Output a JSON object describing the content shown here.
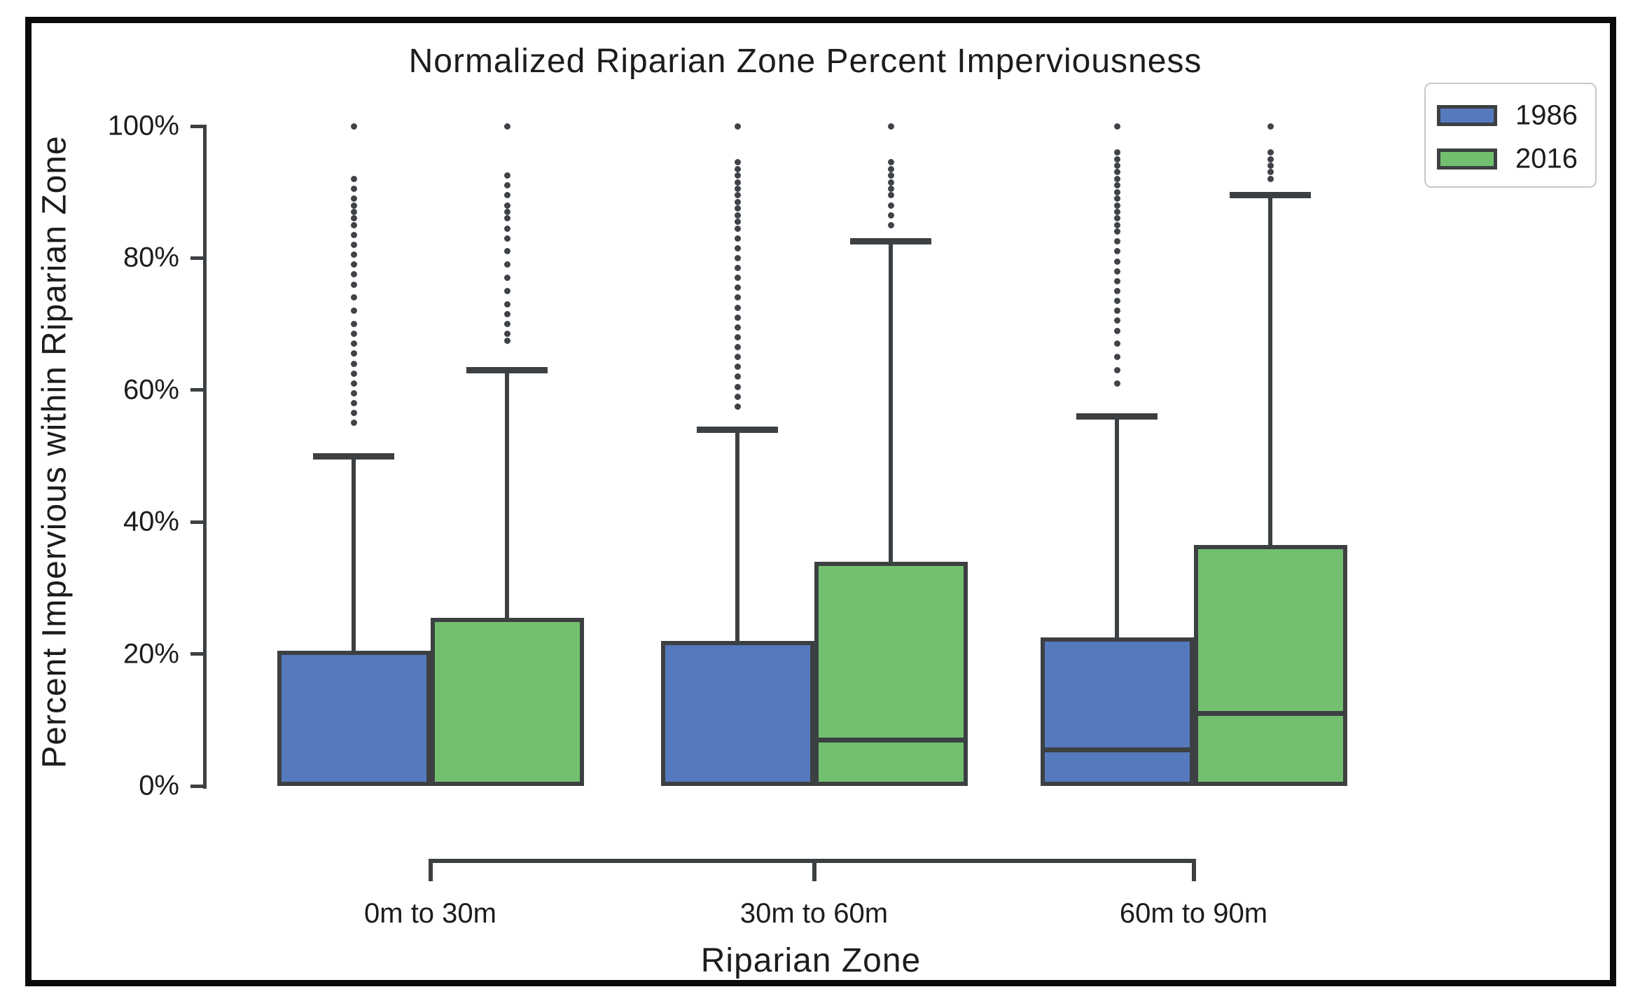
{
  "figure": {
    "title": "Normalized Riparian Zone Percent Imperviousness",
    "x_axis_label": "Riparian Zone",
    "y_axis_label": "Percent Impervious within Riparian Zone"
  },
  "legend": {
    "items": [
      {
        "label": "1986",
        "color": "#5579bd"
      },
      {
        "label": "2016",
        "color": "#72c06f"
      }
    ]
  },
  "colors": {
    "box_1986": "#5579bd",
    "box_2016": "#72c06f",
    "line": "#3c4043",
    "frame": "#0b0b0b",
    "legend_border": "#c8c8c8"
  },
  "chart_data": {
    "type": "boxplot",
    "title": "Normalized Riparian Zone Percent Imperviousness",
    "xlabel": "Riparian Zone",
    "ylabel": "Percent Impervious within Riparian Zone",
    "ylim": [
      0,
      100
    ],
    "y_tick_values": [
      0,
      20,
      40,
      60,
      80,
      100
    ],
    "y_tick_labels": [
      "0%",
      "20%",
      "40%",
      "60%",
      "80%",
      "100%"
    ],
    "grid": false,
    "legend_position": "upper right",
    "categories": [
      "0m to 30m",
      "30m to 60m",
      "60m to 90m"
    ],
    "series": [
      {
        "name": "1986",
        "color": "#5579bd",
        "boxes": [
          {
            "category": "0m to 30m",
            "q1": 0,
            "median": 0,
            "q3": 20.5,
            "whisker_low": 0,
            "whisker_high": 50,
            "outliers": [
              55,
              56.5,
              58,
              59.5,
              61,
              62.5,
              64,
              65.5,
              67,
              68.5,
              70,
              72,
              74,
              76,
              77.5,
              79,
              80.5,
              82,
              83.5,
              85,
              86,
              87,
              88,
              89,
              90.5,
              92,
              100
            ]
          },
          {
            "category": "30m to 60m",
            "q1": 0,
            "median": 0,
            "q3": 22,
            "whisker_low": 0,
            "whisker_high": 54,
            "outliers": [
              57.5,
              59,
              60.5,
              62,
              63.5,
              65,
              66.5,
              68,
              69.5,
              71,
              72.5,
              74,
              75.5,
              77,
              78.5,
              80,
              81.5,
              83,
              84.5,
              85.5,
              86.5,
              87.5,
              88.5,
              89.5,
              90.5,
              91.5,
              92.5,
              93.5,
              94.5,
              100
            ]
          },
          {
            "category": "60m to 90m",
            "q1": 0,
            "median": 5.5,
            "q3": 22.5,
            "whisker_low": 0,
            "whisker_high": 56,
            "outliers": [
              61,
              63,
              65,
              67,
              69,
              70.5,
              72,
              73.5,
              75,
              76.5,
              78,
              79.5,
              81,
              82.5,
              84,
              85,
              86,
              87,
              88,
              89,
              90,
              91,
              92,
              93,
              94,
              95,
              96,
              100
            ]
          }
        ]
      },
      {
        "name": "2016",
        "color": "#72c06f",
        "boxes": [
          {
            "category": "0m to 30m",
            "q1": 0,
            "median": 0,
            "q3": 25.5,
            "whisker_low": 0,
            "whisker_high": 63,
            "outliers": [
              67.5,
              68.5,
              70,
              71.5,
              73,
              75,
              77,
              79,
              81,
              83,
              84.5,
              86,
              87,
              88,
              89.5,
              91,
              92.5,
              100
            ]
          },
          {
            "category": "30m to 60m",
            "q1": 0,
            "median": 7,
            "q3": 34,
            "whisker_low": 0,
            "whisker_high": 82.5,
            "outliers": [
              85,
              86.5,
              88,
              89.5,
              90.5,
              91.5,
              92.5,
              93.5,
              94.5,
              100
            ]
          },
          {
            "category": "60m to 90m",
            "q1": 0,
            "median": 11,
            "q3": 36.5,
            "whisker_low": 0,
            "whisker_high": 89.5,
            "outliers": [
              92,
              93,
              94,
              95,
              96,
              100
            ]
          }
        ]
      }
    ]
  }
}
